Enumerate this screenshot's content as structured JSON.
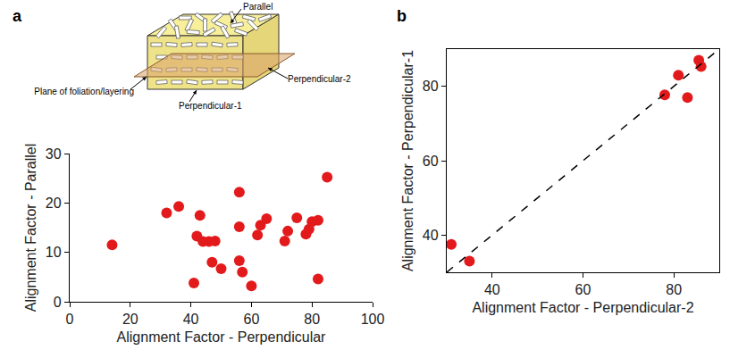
{
  "diagram": {
    "parallel": "Parallel",
    "perpendicular_1": "Perpendicular-1",
    "perpendicular_2": "Perpendicular-2",
    "plane": "Plane of foliation/layering"
  },
  "chart_data": [
    {
      "panel": "a",
      "type": "scatter",
      "x_label": "Alignment Factor - Perpendicular",
      "y_label": "Alignment Factor - Parallel",
      "color": "#e31a1c",
      "marker": "circle",
      "grid": false,
      "x": [
        14,
        32,
        36,
        41,
        42,
        43,
        44,
        46,
        47,
        48,
        50,
        56,
        56,
        56,
        57,
        60,
        62,
        63,
        65,
        71,
        72,
        75,
        78,
        79,
        80,
        82,
        82,
        85
      ],
      "values": [
        11.5,
        18,
        19.3,
        3.8,
        13.3,
        17.5,
        12.2,
        12.2,
        8,
        12.3,
        6.7,
        22.2,
        15.2,
        8.3,
        6,
        3.2,
        13.5,
        15.5,
        16.8,
        12.3,
        14.3,
        17,
        13.7,
        14.7,
        16.2,
        16.5,
        4.6,
        25.2
      ],
      "xlim": [
        0,
        100
      ],
      "xticks": [
        0,
        20,
        40,
        60,
        80,
        100
      ],
      "ylim": [
        0,
        30
      ],
      "yticks": [
        0,
        10,
        20,
        30
      ]
    },
    {
      "panel": "b",
      "type": "scatter",
      "x_label": "Alignment Factor - Perpendicular-2",
      "y_label": "Alignment Factor - Perpendicular-1",
      "grid": false,
      "series": [
        {
          "type": "scatter",
          "color": "#e31a1c",
          "marker": "circle",
          "x": [
            31,
            35,
            78,
            81,
            83,
            85.5,
            86
          ],
          "values": [
            37.5,
            33,
            77.7,
            83,
            77,
            87,
            85.3
          ]
        },
        {
          "type": "line",
          "color": "#000000",
          "line_style": "dashed",
          "x": [
            30,
            90
          ],
          "values": [
            30,
            90
          ]
        }
      ],
      "xlim": [
        30,
        90
      ],
      "xticks": [
        40,
        60,
        80
      ],
      "ylim": [
        30,
        90
      ],
      "yticks": [
        40,
        60,
        80
      ]
    }
  ]
}
